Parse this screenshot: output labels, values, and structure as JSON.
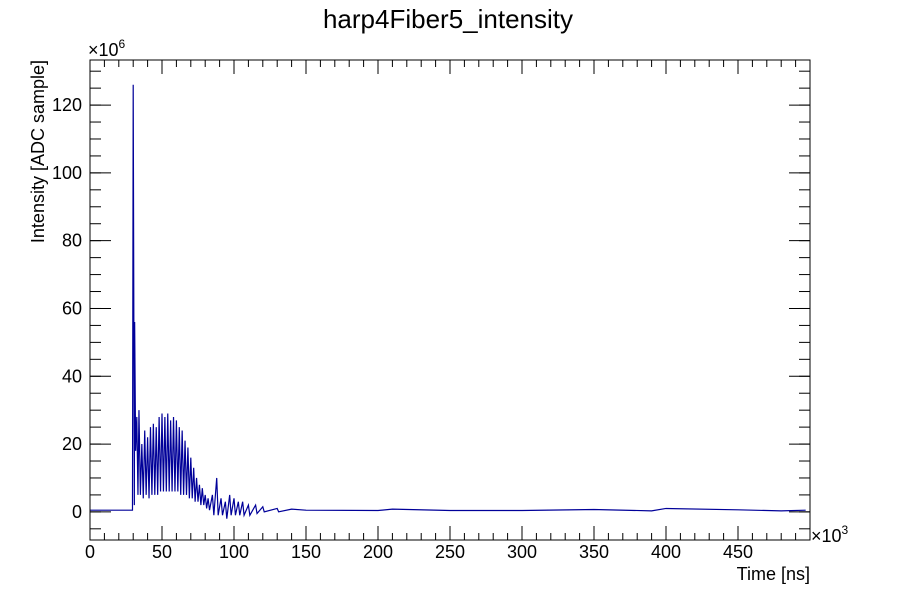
{
  "chart_data": {
    "type": "line",
    "title": "harp4Fiber5_intensity",
    "x_label": "Time [ns]",
    "y_label": "Intensity [ADC sample]",
    "x_multiplier": "×10",
    "x_multiplier_exp": "3",
    "y_multiplier": "×10",
    "y_multiplier_exp": "6",
    "xlim": [
      0,
      500
    ],
    "ylim": [
      -8.3,
      133.3
    ],
    "xticks": [
      0,
      50,
      100,
      150,
      200,
      250,
      300,
      350,
      400,
      450
    ],
    "yticks": [
      0,
      20,
      40,
      60,
      80,
      100,
      120
    ],
    "grid": false,
    "series": [
      {
        "name": "harp4Fiber5_intensity",
        "color": "#000099",
        "x": [
          0,
          10,
          20,
          28,
          29.5,
          30,
          30.8,
          31,
          31.7,
          32.5,
          33.3,
          34,
          35,
          36,
          37,
          38,
          39,
          40,
          41,
          42,
          43,
          44,
          45,
          46,
          47,
          48,
          49,
          50,
          51,
          52,
          53,
          54,
          55,
          56,
          57,
          58,
          59,
          60,
          61,
          62,
          63,
          64,
          65,
          66,
          67,
          68,
          69,
          70,
          71,
          72,
          73,
          74,
          75,
          76,
          77,
          78,
          79,
          80,
          81,
          82,
          83,
          85,
          86,
          88,
          89,
          91,
          92,
          94,
          95,
          97,
          98,
          100,
          101,
          103,
          104,
          106,
          107,
          110,
          111,
          115,
          116,
          120,
          121,
          130,
          131,
          140,
          150,
          200,
          210,
          250,
          300,
          350,
          390,
          400,
          450,
          480,
          497
        ],
        "values": [
          0.5,
          0.5,
          0.5,
          0.5,
          0.5,
          126,
          2,
          56,
          18,
          28,
          5,
          30,
          5,
          20,
          4,
          24,
          5,
          22,
          4,
          25,
          5,
          26,
          5,
          25,
          5,
          28,
          6,
          29,
          6,
          28,
          6,
          29,
          6,
          27,
          6,
          28,
          6,
          27,
          6,
          25,
          5,
          24,
          5,
          21,
          5,
          19,
          4,
          16,
          4,
          13,
          3,
          10,
          3,
          8,
          2,
          7,
          2,
          5,
          1,
          4,
          0.5,
          5,
          -1,
          10,
          -1,
          4,
          -1,
          3,
          -2,
          5,
          -1,
          4,
          -1,
          3,
          -1,
          3,
          -1,
          2,
          -1,
          2,
          -0.5,
          1.5,
          0,
          1,
          0,
          0.8,
          0.5,
          0.4,
          0.8,
          0.4,
          0.4,
          0.7,
          0.3,
          1,
          0.6,
          0.3,
          0.5
        ]
      }
    ]
  }
}
